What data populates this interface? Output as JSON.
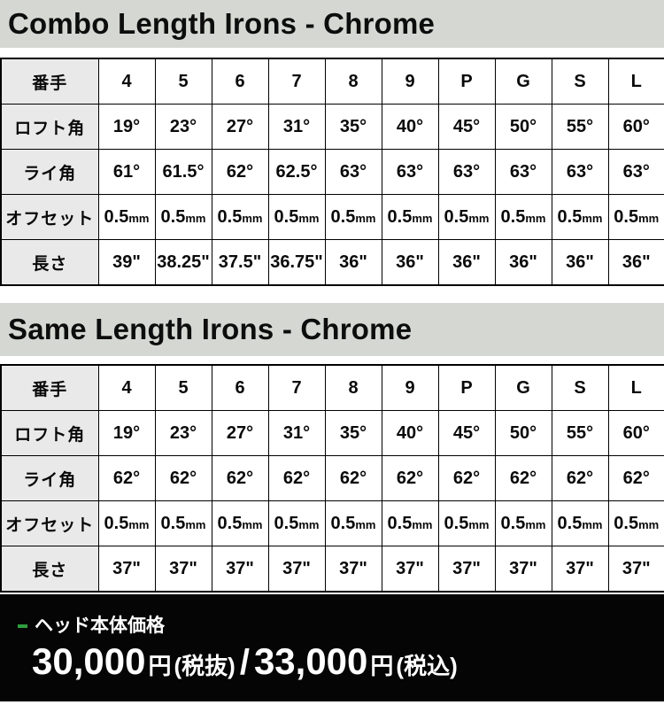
{
  "colors": {
    "title_bg": "#d5d8d2",
    "header_cell_bg": "#e9e9e9",
    "table_border": "#000000",
    "footer_bg": "#050505",
    "accent_green": "#2f9e3f",
    "footer_text": "#ffffff"
  },
  "tables": [
    {
      "title": "Combo Length Irons - Chrome",
      "corner_label": "番手",
      "columns": [
        "4",
        "5",
        "6",
        "7",
        "8",
        "9",
        "P",
        "G",
        "S",
        "L"
      ],
      "rows": [
        {
          "label": "ロフト角",
          "values": [
            "19°",
            "23°",
            "27°",
            "31°",
            "35°",
            "40°",
            "45°",
            "50°",
            "55°",
            "60°"
          ]
        },
        {
          "label": "ライ角",
          "values": [
            "61°",
            "61.5°",
            "62°",
            "62.5°",
            "63°",
            "63°",
            "63°",
            "63°",
            "63°",
            "63°"
          ]
        },
        {
          "label": "オフセット",
          "values": [
            "0.5mm",
            "0.5mm",
            "0.5mm",
            "0.5mm",
            "0.5mm",
            "0.5mm",
            "0.5mm",
            "0.5mm",
            "0.5mm",
            "0.5mm"
          ]
        },
        {
          "label": "長さ",
          "values": [
            "39\"",
            "38.25\"",
            "37.5\"",
            "36.75\"",
            "36\"",
            "36\"",
            "36\"",
            "36\"",
            "36\"",
            "36\""
          ]
        }
      ]
    },
    {
      "title": "Same Length Irons - Chrome",
      "corner_label": "番手",
      "columns": [
        "4",
        "5",
        "6",
        "7",
        "8",
        "9",
        "P",
        "G",
        "S",
        "L"
      ],
      "rows": [
        {
          "label": "ロフト角",
          "values": [
            "19°",
            "23°",
            "27°",
            "31°",
            "35°",
            "40°",
            "45°",
            "50°",
            "55°",
            "60°"
          ]
        },
        {
          "label": "ライ角",
          "values": [
            "62°",
            "62°",
            "62°",
            "62°",
            "62°",
            "62°",
            "62°",
            "62°",
            "62°",
            "62°"
          ]
        },
        {
          "label": "オフセット",
          "values": [
            "0.5mm",
            "0.5mm",
            "0.5mm",
            "0.5mm",
            "0.5mm",
            "0.5mm",
            "0.5mm",
            "0.5mm",
            "0.5mm",
            "0.5mm"
          ]
        },
        {
          "label": "長さ",
          "values": [
            "37\"",
            "37\"",
            "37\"",
            "37\"",
            "37\"",
            "37\"",
            "37\"",
            "37\"",
            "37\"",
            "37\""
          ]
        }
      ]
    }
  ],
  "footer": {
    "label": "ヘッド本体価格",
    "price_primary": "30,000",
    "price_primary_unit": "円",
    "price_primary_tax": "(税抜)",
    "separator": "/",
    "price_secondary": "33,000",
    "price_secondary_unit": "円",
    "price_secondary_tax": "(税込)"
  }
}
